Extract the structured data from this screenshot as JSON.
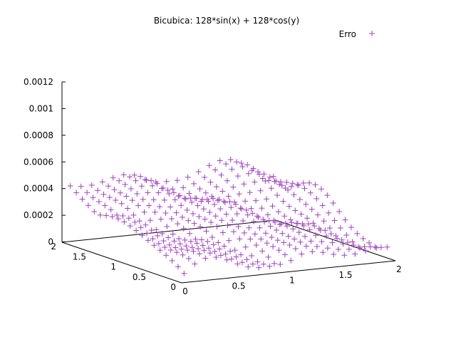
{
  "chart_data": {
    "type": "scatter",
    "title": "Bicubica: 128*sin(x) + 128*cos(y)",
    "projection": "3d",
    "series": [
      {
        "name": "Erro",
        "marker": "+",
        "color": "#a040c0",
        "point_grid": {
          "x_range": [
            0,
            2
          ],
          "y_range": [
            0,
            2
          ],
          "n": 20
        },
        "values_pattern": "error grows with y, ripples with x (approximate)"
      }
    ],
    "x_ticks": [
      "0",
      "0.5",
      "1",
      "1.5",
      "2"
    ],
    "y_ticks": [
      "0",
      "0.5",
      "1",
      "1.5",
      "2"
    ],
    "z_ticks": [
      "0",
      "0.0002",
      "0.0004",
      "0.0006",
      "0.0008",
      "0.001",
      "0.0012"
    ],
    "xlim": [
      0,
      2
    ],
    "ylim": [
      0,
      2
    ],
    "zlim": [
      0,
      0.0012
    ],
    "grid": false,
    "legend_position": "top-right"
  }
}
